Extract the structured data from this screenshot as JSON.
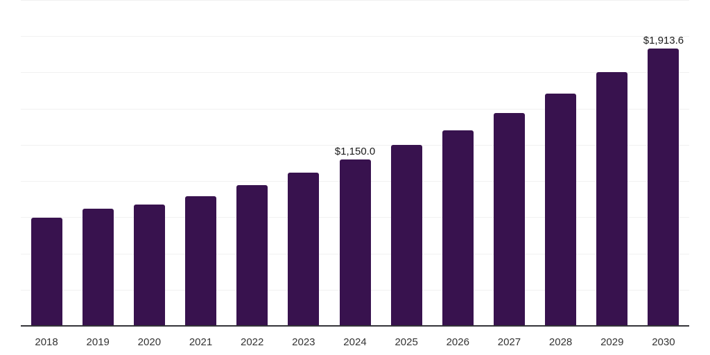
{
  "chart_data": {
    "type": "bar",
    "title": "",
    "xlabel": "",
    "ylabel": "",
    "categories": [
      "2018",
      "2019",
      "2020",
      "2021",
      "2022",
      "2023",
      "2024",
      "2025",
      "2026",
      "2027",
      "2028",
      "2029",
      "2030"
    ],
    "values": [
      749,
      808,
      840,
      893,
      974,
      1058,
      1150.0,
      1250,
      1352,
      1470,
      1604,
      1750,
      1913.6
    ],
    "data_labels": [
      "",
      "",
      "",
      "",
      "",
      "",
      "$1,150.0",
      "",
      "",
      "",
      "",
      "",
      "$1,913.6"
    ],
    "ylim": [
      0,
      2250
    ],
    "gridline_step": 250,
    "y_tick_labels_visible": false,
    "grid": "horizontal",
    "legend": "none"
  },
  "colors": {
    "bar": "#38124e",
    "gridline": "#f1f1f1",
    "axis_line": "#333338",
    "tick_label": "#333333",
    "data_label": "#1a1a1a",
    "background": "#ffffff"
  }
}
